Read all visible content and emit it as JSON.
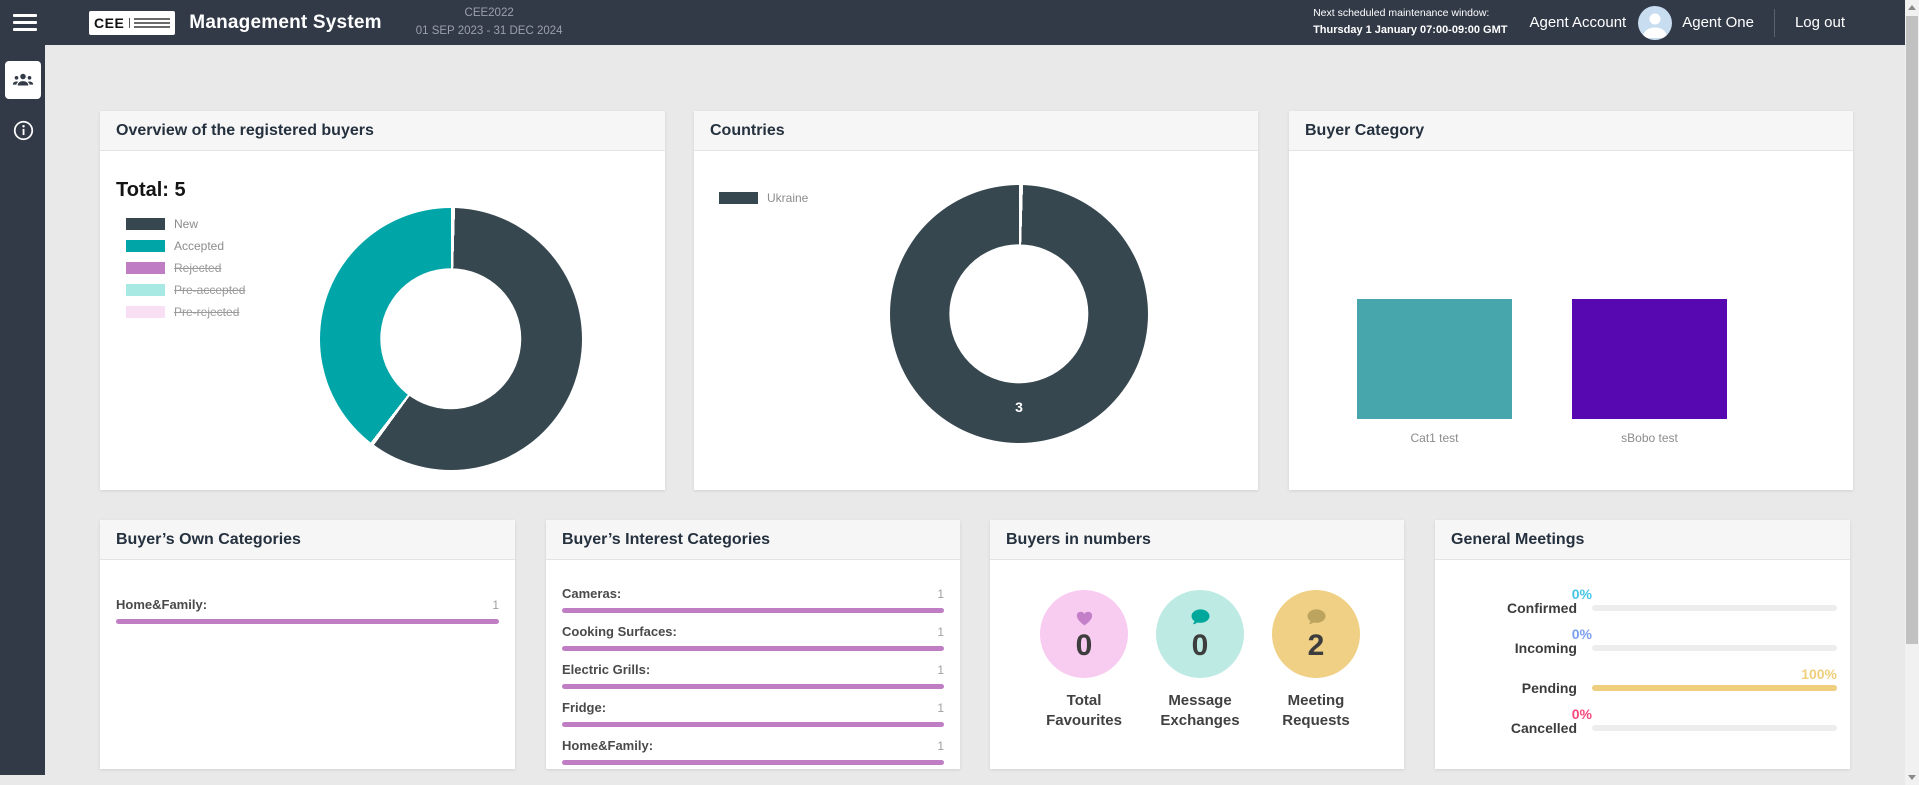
{
  "header": {
    "logo_text": "CEE",
    "app_title": "Management System",
    "event_code": "CEE2022",
    "event_dates": "01 SEP 2023 - 31 DEC 2024",
    "maintenance_label": "Next scheduled maintenance window:",
    "maintenance_value": "Thursday 1 January 07:00-09:00 GMT",
    "account_label": "Agent Account",
    "user_name": "Agent One",
    "logout_label": "Log out"
  },
  "sidebar": {
    "items": [
      {
        "name": "buyers",
        "icon": "group-icon",
        "active": true
      },
      {
        "name": "info",
        "icon": "info-icon",
        "active": false
      }
    ]
  },
  "cards": {
    "overview": {
      "title": "Overview of the registered buyers",
      "total_label": "Total: 5"
    },
    "countries": {
      "title": "Countries"
    },
    "buyer_category": {
      "title": "Buyer Category"
    },
    "own_categories": {
      "title": "Buyer’s Own Categories"
    },
    "interest_categories": {
      "title": "Buyer’s Interest Categories"
    },
    "buyers_in_numbers": {
      "title": "Buyers in numbers"
    },
    "general_meetings": {
      "title": "General Meetings"
    }
  },
  "colors": {
    "header_bg": "#323947",
    "page_bg": "#e9e9e9",
    "slate": "#37474f",
    "teal": "#00a5a8",
    "orchid": "#bf7ec4"
  },
  "chart_data": [
    {
      "id": "overview-donut",
      "type": "pie",
      "title": "Overview of the registered buyers",
      "total": 5,
      "labels": [
        "New",
        "Accepted",
        "Rejected",
        "Pre-accepted",
        "Pre-rejected"
      ],
      "values": [
        3,
        2,
        0,
        0,
        0
      ],
      "colors": [
        "#37474f",
        "#00a5a8",
        "#bf7ec4",
        "#a9e9e3",
        "#f8dff4"
      ],
      "disabled": [
        false,
        false,
        true,
        true,
        true
      ],
      "legend_position": "left"
    },
    {
      "id": "countries-donut",
      "type": "pie",
      "title": "Countries",
      "labels": [
        "Ukraine"
      ],
      "values": [
        3
      ],
      "colors": [
        "#37474f"
      ],
      "data_label": "3",
      "legend_position": "left"
    },
    {
      "id": "buyer-category-bars",
      "type": "bar",
      "title": "Buyer Category",
      "categories": [
        "Cat1 test",
        "sBobo test"
      ],
      "values": [
        1,
        1
      ],
      "colors": [
        "#46a6ab",
        "#5708b1"
      ]
    },
    {
      "id": "own-categories",
      "type": "bar",
      "orientation": "horizontal",
      "title": "Buyer’s Own Categories",
      "categories": [
        "Home&Family:"
      ],
      "values": [
        1
      ],
      "max": 1,
      "color": "#bf7ec4"
    },
    {
      "id": "interest-categories",
      "type": "bar",
      "orientation": "horizontal",
      "title": "Buyer’s Interest Categories",
      "categories": [
        "Cameras:",
        "Cooking Surfaces:",
        "Electric Grills:",
        "Fridge:",
        "Home&Family:"
      ],
      "values": [
        1,
        1,
        1,
        1,
        1
      ],
      "max": 1,
      "color": "#bf7ec4"
    },
    {
      "id": "buyers-in-numbers",
      "type": "table",
      "title": "Buyers in numbers",
      "items": [
        {
          "label": "Total Favourites",
          "value": 0,
          "icon": "heart-icon",
          "circle_color": "#f8ccf1",
          "icon_color": "#c47fc9"
        },
        {
          "label": "Message Exchanges",
          "value": 0,
          "icon": "chat-bubble-icon",
          "circle_color": "#bdebe4",
          "icon_color": "#00a79b"
        },
        {
          "label": "Meeting Requests",
          "value": 2,
          "icon": "chat-bubble-icon",
          "circle_color": "#efd084",
          "icon_color": "#bda45e"
        }
      ]
    },
    {
      "id": "general-meetings",
      "type": "bar",
      "orientation": "horizontal",
      "title": "General Meetings",
      "categories": [
        "Confirmed",
        "Incoming",
        "Pending",
        "Cancelled"
      ],
      "values": [
        0,
        0,
        100,
        0
      ],
      "unit": "%",
      "colors": [
        "#45c5e5",
        "#7b9ff0",
        "#efcf7d",
        "#f4497b"
      ],
      "track_color": "#ededed",
      "xlim": [
        0,
        100
      ]
    }
  ]
}
